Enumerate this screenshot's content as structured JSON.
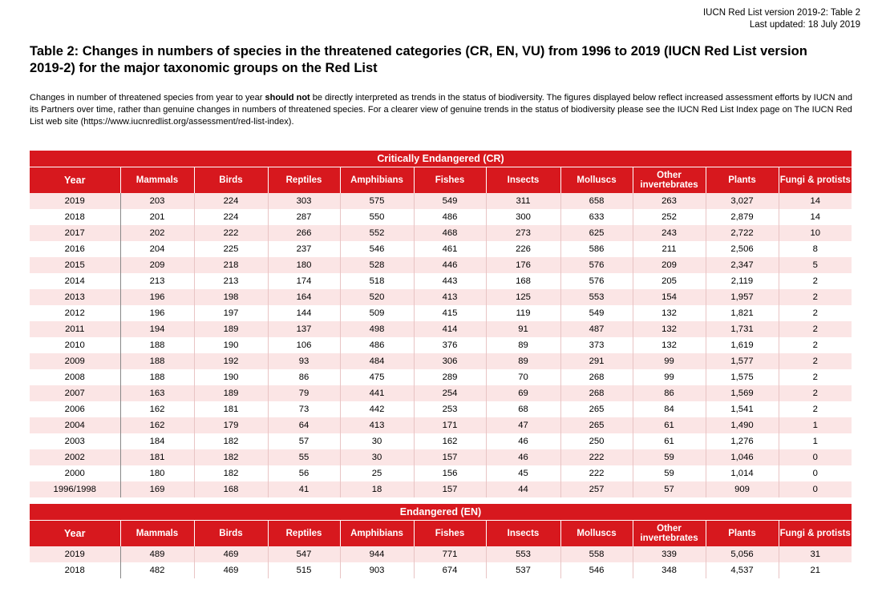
{
  "header": {
    "version": "IUCN Red List version 2019-2: Table 2",
    "updated": "Last updated: 18 July 2019"
  },
  "title": "Table 2:  Changes in numbers of species in the threatened categories (CR, EN, VU) from 1996 to 2019 (IUCN Red List version 2019-2) for the major taxonomic groups on the Red List",
  "description": {
    "before_bold": "Changes in number of threatened species from year to year ",
    "bold": "should not",
    "after_bold": " be directly interpreted as trends in the status of biodiversity. The figures displayed below reflect increased assessment efforts by IUCN and its Partners over time, rather than genuine changes in numbers of threatened species. For a clearer view of genuine trends in the status of biodiversity please see the IUCN Red List Index page on The IUCN Red List web site (https://www.iucnredlist.org/assessment/red-list-index)."
  },
  "columns": [
    "Year",
    "Mammals",
    "Birds",
    "Reptiles",
    "Amphibians",
    "Fishes",
    "Insects",
    "Molluscs",
    "Other invertebrates",
    "Plants",
    "Fungi & protists"
  ],
  "sections": [
    {
      "title": "Critically Endangered (CR)",
      "rows": [
        [
          "2019",
          "203",
          "224",
          "303",
          "575",
          "549",
          "311",
          "658",
          "263",
          "3,027",
          "14"
        ],
        [
          "2018",
          "201",
          "224",
          "287",
          "550",
          "486",
          "300",
          "633",
          "252",
          "2,879",
          "14"
        ],
        [
          "2017",
          "202",
          "222",
          "266",
          "552",
          "468",
          "273",
          "625",
          "243",
          "2,722",
          "10"
        ],
        [
          "2016",
          "204",
          "225",
          "237",
          "546",
          "461",
          "226",
          "586",
          "211",
          "2,506",
          "8"
        ],
        [
          "2015",
          "209",
          "218",
          "180",
          "528",
          "446",
          "176",
          "576",
          "209",
          "2,347",
          "5"
        ],
        [
          "2014",
          "213",
          "213",
          "174",
          "518",
          "443",
          "168",
          "576",
          "205",
          "2,119",
          "2"
        ],
        [
          "2013",
          "196",
          "198",
          "164",
          "520",
          "413",
          "125",
          "553",
          "154",
          "1,957",
          "2"
        ],
        [
          "2012",
          "196",
          "197",
          "144",
          "509",
          "415",
          "119",
          "549",
          "132",
          "1,821",
          "2"
        ],
        [
          "2011",
          "194",
          "189",
          "137",
          "498",
          "414",
          "91",
          "487",
          "132",
          "1,731",
          "2"
        ],
        [
          "2010",
          "188",
          "190",
          "106",
          "486",
          "376",
          "89",
          "373",
          "132",
          "1,619",
          "2"
        ],
        [
          "2009",
          "188",
          "192",
          "93",
          "484",
          "306",
          "89",
          "291",
          "99",
          "1,577",
          "2"
        ],
        [
          "2008",
          "188",
          "190",
          "86",
          "475",
          "289",
          "70",
          "268",
          "99",
          "1,575",
          "2"
        ],
        [
          "2007",
          "163",
          "189",
          "79",
          "441",
          "254",
          "69",
          "268",
          "86",
          "1,569",
          "2"
        ],
        [
          "2006",
          "162",
          "181",
          "73",
          "442",
          "253",
          "68",
          "265",
          "84",
          "1,541",
          "2"
        ],
        [
          "2004",
          "162",
          "179",
          "64",
          "413",
          "171",
          "47",
          "265",
          "61",
          "1,490",
          "1"
        ],
        [
          "2003",
          "184",
          "182",
          "57",
          "30",
          "162",
          "46",
          "250",
          "61",
          "1,276",
          "1"
        ],
        [
          "2002",
          "181",
          "182",
          "55",
          "30",
          "157",
          "46",
          "222",
          "59",
          "1,046",
          "0"
        ],
        [
          "2000",
          "180",
          "182",
          "56",
          "25",
          "156",
          "45",
          "222",
          "59",
          "1,014",
          "0"
        ],
        [
          "1996/1998",
          "169",
          "168",
          "41",
          "18",
          "157",
          "44",
          "257",
          "57",
          "909",
          "0"
        ]
      ]
    },
    {
      "title": "Endangered (EN)",
      "rows": [
        [
          "2019",
          "489",
          "469",
          "547",
          "944",
          "771",
          "553",
          "558",
          "339",
          "5,056",
          "31"
        ],
        [
          "2018",
          "482",
          "469",
          "515",
          "903",
          "674",
          "537",
          "546",
          "348",
          "4,537",
          "21"
        ]
      ]
    }
  ],
  "colors": {
    "header_red": "#d7181e",
    "row_pink": "#fbe5e5"
  }
}
